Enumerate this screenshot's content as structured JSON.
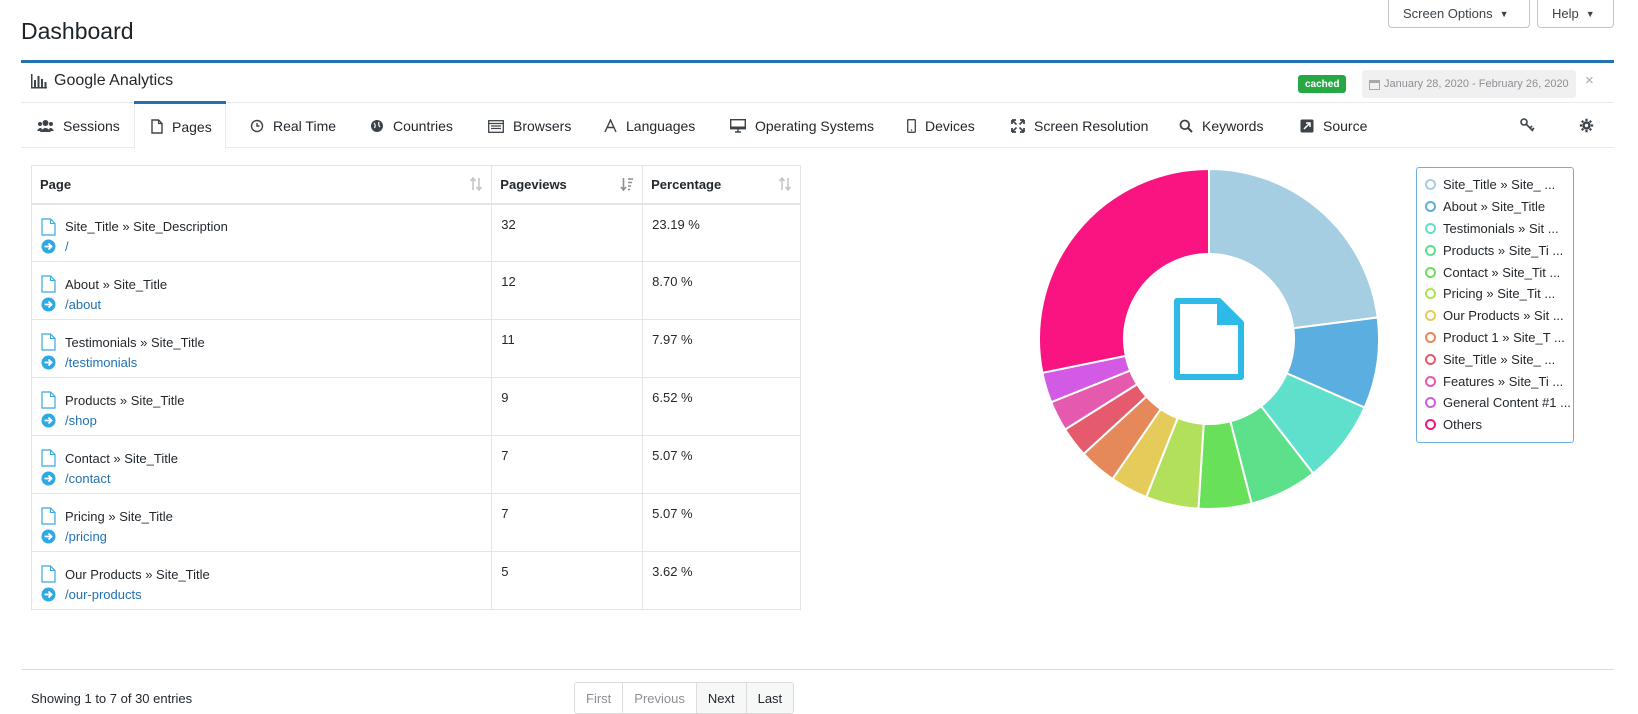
{
  "page": {
    "title": "Dashboard"
  },
  "top_buttons": {
    "screen_options": "Screen Options",
    "help": "Help"
  },
  "widget": {
    "title": "Google Analytics",
    "badge": "cached",
    "date_range": "January 28, 2020 - February 26, 2020",
    "close": "×"
  },
  "tabs": [
    {
      "label": "Sessions",
      "icon": "users-icon"
    },
    {
      "label": "Pages",
      "icon": "file-icon",
      "active": true
    },
    {
      "label": "Real Time",
      "icon": "clock-icon"
    },
    {
      "label": "Countries",
      "icon": "globe-icon"
    },
    {
      "label": "Browsers",
      "icon": "browser-list-icon"
    },
    {
      "label": "Languages",
      "icon": "font-icon"
    },
    {
      "label": "Operating Systems",
      "icon": "desktop-icon"
    },
    {
      "label": "Devices",
      "icon": "mobile-icon"
    },
    {
      "label": "Screen Resolution",
      "icon": "expand-icon"
    },
    {
      "label": "Keywords",
      "icon": "search-icon"
    },
    {
      "label": "Source",
      "icon": "external-link-icon"
    }
  ],
  "tools": {
    "key_icon": "key-icon",
    "settings_icon": "gear-icon"
  },
  "table": {
    "headers": {
      "page": "Page",
      "pageviews": "Pageviews",
      "percentage": "Percentage"
    },
    "rows": [
      {
        "title": "Site_Title » Site_Description",
        "path": "/",
        "pageviews": "32",
        "percentage": "23.19 %"
      },
      {
        "title": "About » Site_Title",
        "path": "/about",
        "pageviews": "12",
        "percentage": "8.70 %"
      },
      {
        "title": "Testimonials » Site_Title",
        "path": "/testimonials",
        "pageviews": "11",
        "percentage": "7.97 %"
      },
      {
        "title": "Products » Site_Title",
        "path": "/shop",
        "pageviews": "9",
        "percentage": "6.52 %"
      },
      {
        "title": "Contact » Site_Title",
        "path": "/contact",
        "pageviews": "7",
        "percentage": "5.07 %"
      },
      {
        "title": "Pricing » Site_Title",
        "path": "/pricing",
        "pageviews": "7",
        "percentage": "5.07 %"
      },
      {
        "title": "Our Products » Site_Title",
        "path": "/our-products",
        "pageviews": "5",
        "percentage": "3.62 %"
      }
    ],
    "showing": "Showing 1 to 7 of 30 entries"
  },
  "pagination": {
    "first": "First",
    "previous": "Previous",
    "next": "Next",
    "last": "Last"
  },
  "chart_data": {
    "type": "pie",
    "center_icon": "file-icon",
    "legend_placement": "right",
    "series": [
      {
        "name": "Site_Title » Site_ ...",
        "value": 23.19,
        "color": "#a6cee3"
      },
      {
        "name": "About » Site_Title",
        "value": 8.7,
        "color": "#5aaee0"
      },
      {
        "name": "Testimonials » Sit ...",
        "value": 7.97,
        "color": "#5fe0cc"
      },
      {
        "name": "Products » Site_Ti ...",
        "value": 6.52,
        "color": "#5de08a"
      },
      {
        "name": "Contact » Site_Tit ...",
        "value": 5.07,
        "color": "#69e05a"
      },
      {
        "name": "Pricing » Site_Tit ...",
        "value": 5.07,
        "color": "#b2e05a"
      },
      {
        "name": "Our Products » Sit ...",
        "value": 3.62,
        "color": "#e5cc5a"
      },
      {
        "name": "Product 1 » Site_T ...",
        "value": 3.62,
        "color": "#e5895a"
      },
      {
        "name": "Site_Title » Site_ ...",
        "value": 2.9,
        "color": "#e55a6c"
      },
      {
        "name": "Features » Site_Ti ...",
        "value": 2.9,
        "color": "#e55aaf"
      },
      {
        "name": "General Content #1 ...",
        "value": 2.9,
        "color": "#d35ae5"
      },
      {
        "name": "Others",
        "value": 28.44,
        "color": "#fa1482"
      }
    ]
  }
}
